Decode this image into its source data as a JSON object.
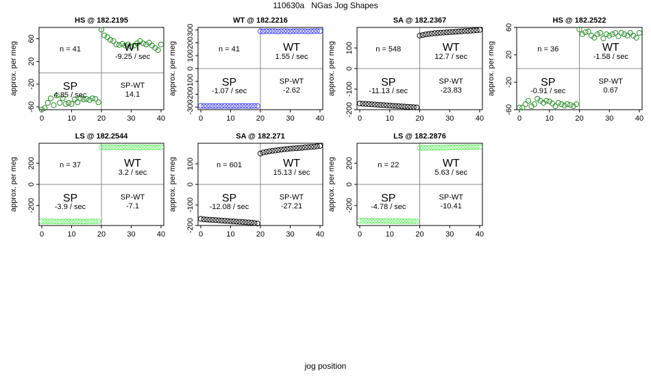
{
  "figure": {
    "title": "110630a   NGas Jog Shapes",
    "x_caption": "jog position"
  },
  "quadrant_labels": {
    "sp": "SP",
    "wt": "WT",
    "spwt": "SP-WT"
  },
  "chart_data": [
    {
      "type": "scatter",
      "title": "HS @ 182.2195",
      "ylabel": "approx. per meg",
      "xlim": [
        0,
        40
      ],
      "ylim": [
        -65,
        80
      ],
      "x_ticks": [
        0,
        10,
        20,
        30,
        40
      ],
      "y_ticks": [
        -60,
        -20,
        20,
        60
      ],
      "point_color": "#228b22",
      "n_label": "n = 41",
      "sp_rate": "4.85 / sec",
      "wt_rate": "-9.25 / sec",
      "spwt_value": "14.1",
      "x": [
        0,
        1,
        2,
        3,
        4,
        5,
        6,
        7,
        8,
        9,
        10,
        11,
        12,
        13,
        14,
        15,
        16,
        17,
        18,
        19,
        20,
        21,
        22,
        23,
        24,
        25,
        26,
        27,
        28,
        29,
        30,
        31,
        32,
        33,
        34,
        35,
        36,
        37,
        38,
        39,
        40
      ],
      "y": [
        -65,
        -62,
        -53,
        -45,
        -57,
        -40,
        -53,
        -45,
        -55,
        -53,
        -55,
        -47,
        -52,
        -45,
        -47,
        -46,
        -48,
        -45,
        -46,
        -52,
        76,
        66,
        63,
        58,
        56,
        50,
        49,
        51,
        48,
        50,
        46,
        48,
        52,
        56,
        52,
        50,
        53,
        48,
        44,
        40,
        50
      ]
    },
    {
      "type": "scatter",
      "title": "WT @ 182.2216",
      "ylabel": "approx. per meg",
      "xlim": [
        0,
        40
      ],
      "ylim": [
        -320,
        320
      ],
      "x_ticks": [
        0,
        10,
        20,
        30,
        40
      ],
      "y_ticks": [
        -300,
        -200,
        -100,
        0,
        100,
        200,
        300
      ],
      "point_color": "#4040ff",
      "n_label": "n = 41",
      "sp_rate": "-1.07 / sec",
      "wt_rate": "1.55 / sec",
      "spwt_value": "-2.62",
      "x": [
        0,
        1,
        2,
        3,
        4,
        5,
        6,
        7,
        8,
        9,
        10,
        11,
        12,
        13,
        14,
        15,
        16,
        17,
        18,
        19,
        20,
        21,
        22,
        23,
        24,
        25,
        26,
        27,
        28,
        29,
        30,
        31,
        32,
        33,
        34,
        35,
        36,
        37,
        38,
        39,
        40
      ],
      "y": [
        -290,
        -291,
        -292,
        -291,
        -292,
        -292,
        -291,
        -292,
        -290,
        -291,
        -292,
        -291,
        -292,
        -291,
        -290,
        -291,
        -292,
        -291,
        -290,
        -291,
        290,
        289,
        291,
        290,
        291,
        290,
        289,
        290,
        291,
        290,
        289,
        290,
        291,
        290,
        291,
        290,
        289,
        290,
        291,
        292,
        291
      ]
    },
    {
      "type": "scatter",
      "title": "SA @ 182.2367",
      "ylabel": "approx. per meg",
      "xlim": [
        0,
        40
      ],
      "ylim": [
        -200,
        200
      ],
      "x_ticks": [
        0,
        10,
        20,
        30,
        40
      ],
      "y_ticks": [
        -200,
        -100,
        0,
        100
      ],
      "point_color": "#000000",
      "n_label": "n = 548",
      "sp_rate": "-11.13 / sec",
      "wt_rate": "12.7 / sec",
      "spwt_value": "-23.83",
      "x": [
        0,
        1,
        2,
        3,
        4,
        5,
        6,
        7,
        8,
        9,
        10,
        11,
        12,
        13,
        14,
        15,
        16,
        17,
        18,
        19,
        20,
        21,
        22,
        23,
        24,
        25,
        26,
        27,
        28,
        29,
        30,
        31,
        32,
        33,
        34,
        35,
        36,
        37,
        38,
        39,
        40
      ],
      "y": [
        -170,
        -171,
        -172,
        -173,
        -174,
        -175,
        -176,
        -177,
        -178,
        -179,
        -180,
        -181,
        -182,
        -183,
        -184,
        -185,
        -186,
        -187,
        -188,
        -189,
        160,
        163,
        166,
        168,
        170,
        172,
        173,
        174,
        175,
        176,
        177,
        178,
        179,
        180,
        181,
        182,
        183,
        184,
        185,
        186,
        188
      ]
    },
    {
      "type": "scatter",
      "title": "HS @ 182.2522",
      "ylabel": "approx. per meg",
      "xlim": [
        0,
        40
      ],
      "ylim": [
        -60,
        60
      ],
      "x_ticks": [
        0,
        10,
        20,
        30,
        40
      ],
      "y_ticks": [
        -60,
        -20,
        20,
        60
      ],
      "point_color": "#228b22",
      "n_label": "n = 36",
      "sp_rate": "-0.91 / sec",
      "wt_rate": "-1.58 / sec",
      "spwt_value": "0.67",
      "x": [
        0,
        1,
        2,
        3,
        4,
        5,
        6,
        7,
        8,
        9,
        10,
        11,
        12,
        13,
        14,
        15,
        16,
        17,
        18,
        19,
        20,
        21,
        22,
        23,
        24,
        25,
        26,
        27,
        28,
        29,
        30,
        31,
        32,
        33,
        34,
        35,
        36,
        37,
        38,
        39,
        40
      ],
      "y": [
        -57,
        -57,
        -52,
        -47,
        -55,
        -52,
        -44,
        -47,
        -50,
        -47,
        -48,
        -51,
        -55,
        -50,
        -52,
        -54,
        -52,
        -53,
        -55,
        -52,
        57,
        50,
        53,
        54,
        48,
        45,
        50,
        52,
        44,
        50,
        48,
        50,
        52,
        47,
        52,
        50,
        48,
        52,
        48,
        45,
        52
      ]
    },
    {
      "type": "scatter",
      "title": "LS @ 182.2544",
      "ylabel": "approx. per meg",
      "xlim": [
        0,
        40
      ],
      "ylim": [
        -390,
        390
      ],
      "x_ticks": [
        0,
        10,
        20,
        30,
        40
      ],
      "y_ticks": [
        -200,
        0,
        200
      ],
      "point_color": "#66ee66",
      "n_label": "n = 37",
      "sp_rate": "-3.9 / sec",
      "wt_rate": "3.2 / sec",
      "spwt_value": "-7.1",
      "x": [
        0,
        1,
        2,
        3,
        4,
        5,
        6,
        7,
        8,
        9,
        10,
        11,
        12,
        13,
        14,
        15,
        16,
        17,
        18,
        19,
        20,
        21,
        22,
        23,
        24,
        25,
        26,
        27,
        28,
        29,
        30,
        31,
        32,
        33,
        34,
        35,
        36,
        37,
        38,
        39,
        40
      ],
      "y": [
        -350,
        -351,
        -352,
        -351,
        -352,
        -352,
        -353,
        -352,
        -351,
        -352,
        -353,
        -352,
        -351,
        -352,
        -353,
        -352,
        -352,
        -351,
        -352,
        -352,
        350,
        351,
        352,
        351,
        352,
        351,
        350,
        351,
        352,
        351,
        352,
        351,
        350,
        351,
        352,
        351,
        352,
        351,
        350,
        351,
        352
      ]
    },
    {
      "type": "scatter",
      "title": "SA @ 182.271",
      "ylabel": "approx. per meg",
      "xlim": [
        0,
        40
      ],
      "ylim": [
        -200,
        200
      ],
      "x_ticks": [
        0,
        10,
        20,
        30,
        40
      ],
      "y_ticks": [
        -200,
        -100,
        0,
        100
      ],
      "point_color": "#000000",
      "n_label": "n = 601",
      "sp_rate": "-12.08 / sec",
      "wt_rate": "15.13 / sec",
      "spwt_value": "-27.21",
      "x": [
        0,
        1,
        2,
        3,
        4,
        5,
        6,
        7,
        8,
        9,
        10,
        11,
        12,
        13,
        14,
        15,
        16,
        17,
        18,
        19,
        20,
        21,
        22,
        23,
        24,
        25,
        26,
        27,
        28,
        29,
        30,
        31,
        32,
        33,
        34,
        35,
        36,
        37,
        38,
        39,
        40
      ],
      "y": [
        -168,
        -170,
        -171,
        -172,
        -173,
        -174,
        -175,
        -176,
        -177,
        -178,
        -179,
        -180,
        -181,
        -182,
        -183,
        -184,
        -185,
        -186,
        -188,
        -190,
        150,
        155,
        158,
        161,
        163,
        165,
        167,
        169,
        171,
        172,
        174,
        175,
        176,
        177,
        178,
        180,
        181,
        182,
        183,
        185,
        187
      ]
    },
    {
      "type": "scatter",
      "title": "LS @ 182.2876",
      "ylabel": "approx. per meg",
      "xlim": [
        0,
        40
      ],
      "ylim": [
        -390,
        390
      ],
      "x_ticks": [
        0,
        10,
        20,
        30,
        40
      ],
      "y_ticks": [
        -200,
        0,
        200
      ],
      "point_color": "#66ee66",
      "n_label": "n = 22",
      "sp_rate": "-4.78 / sec",
      "wt_rate": "5.63 / sec",
      "spwt_value": "-10.41",
      "x": [
        0,
        1,
        2,
        3,
        4,
        5,
        6,
        7,
        8,
        9,
        10,
        11,
        12,
        13,
        14,
        15,
        16,
        17,
        18,
        19,
        20,
        21,
        22,
        23,
        24,
        25,
        26,
        27,
        28,
        29,
        30,
        31,
        32,
        33,
        34,
        35,
        36,
        37,
        38,
        39,
        40
      ],
      "y": [
        -345,
        -345,
        -346,
        -346,
        -347,
        -347,
        -346,
        -347,
        -348,
        -347,
        -348,
        -348,
        -349,
        -348,
        -349,
        -350,
        -349,
        -350,
        -350,
        -351,
        345,
        346,
        346,
        347,
        347,
        348,
        348,
        349,
        349,
        350,
        350,
        351,
        351,
        351,
        352,
        352,
        353,
        353,
        353,
        354,
        354
      ]
    }
  ]
}
